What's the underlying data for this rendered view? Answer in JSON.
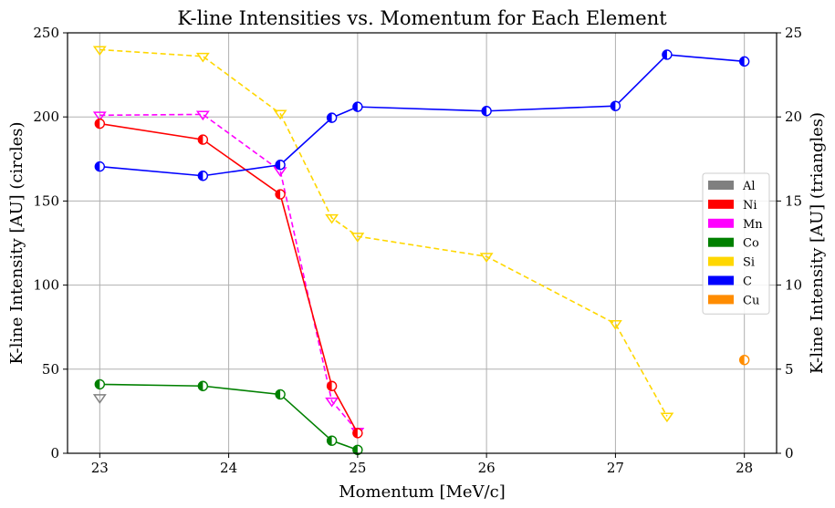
{
  "chart_data": {
    "type": "line",
    "title": "K-line Intensities vs. Momentum for Each Element",
    "xlabel": "Momentum [MeV/c]",
    "ylabel": "K-line Intensity [AU] (circles)",
    "y2label": "K-line Intensity [AU] (triangles)",
    "xlim": [
      22.75,
      28.25
    ],
    "ylim": [
      0,
      250
    ],
    "y2lim": [
      0,
      25
    ],
    "xticks": [
      23,
      24,
      25,
      26,
      27,
      28
    ],
    "yticks": [
      0,
      50,
      100,
      150,
      200,
      250
    ],
    "y2ticks": [
      0,
      5,
      10,
      15,
      20,
      25
    ],
    "grid": true,
    "legend_position": "center-right",
    "legend": [
      {
        "name": "Al",
        "color": "#808080"
      },
      {
        "name": "Ni",
        "color": "#ff0000"
      },
      {
        "name": "Mn",
        "color": "#ff00ff"
      },
      {
        "name": "Co",
        "color": "#008000"
      },
      {
        "name": "Si",
        "color": "#ffd700"
      },
      {
        "name": "C",
        "color": "#0000ff"
      },
      {
        "name": "Cu",
        "color": "#ff8c00"
      }
    ],
    "circle_series": [
      {
        "name": "Ni",
        "color": "#ff0000",
        "x": [
          23,
          23.8,
          24.4,
          24.8,
          25
        ],
        "y": [
          196,
          186.5,
          154,
          40,
          12
        ]
      },
      {
        "name": "Co",
        "color": "#008000",
        "x": [
          23,
          23.8,
          24.4,
          24.8,
          25
        ],
        "y": [
          41,
          40,
          35,
          7.5,
          2
        ]
      },
      {
        "name": "C",
        "color": "#0000ff",
        "x": [
          23,
          23.8,
          24.4,
          24.8,
          25,
          26,
          27,
          27.4,
          28
        ],
        "y": [
          170.5,
          165,
          171.5,
          199.5,
          206,
          203.5,
          206.5,
          237,
          233
        ]
      },
      {
        "name": "Cu",
        "color": "#ff8c00",
        "x": [
          28
        ],
        "y": [
          55.5
        ]
      }
    ],
    "triangle_series": [
      {
        "name": "Al",
        "color": "#808080",
        "x": [
          23
        ],
        "y": [
          3.3
        ]
      },
      {
        "name": "Mn",
        "color": "#ff00ff",
        "x": [
          23,
          23.8,
          24.4,
          24.8,
          25
        ],
        "y": [
          20.1,
          20.15,
          16.8,
          3.1,
          1.3
        ]
      },
      {
        "name": "Si",
        "color": "#ffd700",
        "x": [
          23,
          23.8,
          24.4,
          24.8,
          25,
          26,
          27,
          27.4
        ],
        "y": [
          24,
          23.6,
          20.2,
          14,
          12.9,
          11.7,
          7.7,
          2.2
        ]
      }
    ]
  }
}
